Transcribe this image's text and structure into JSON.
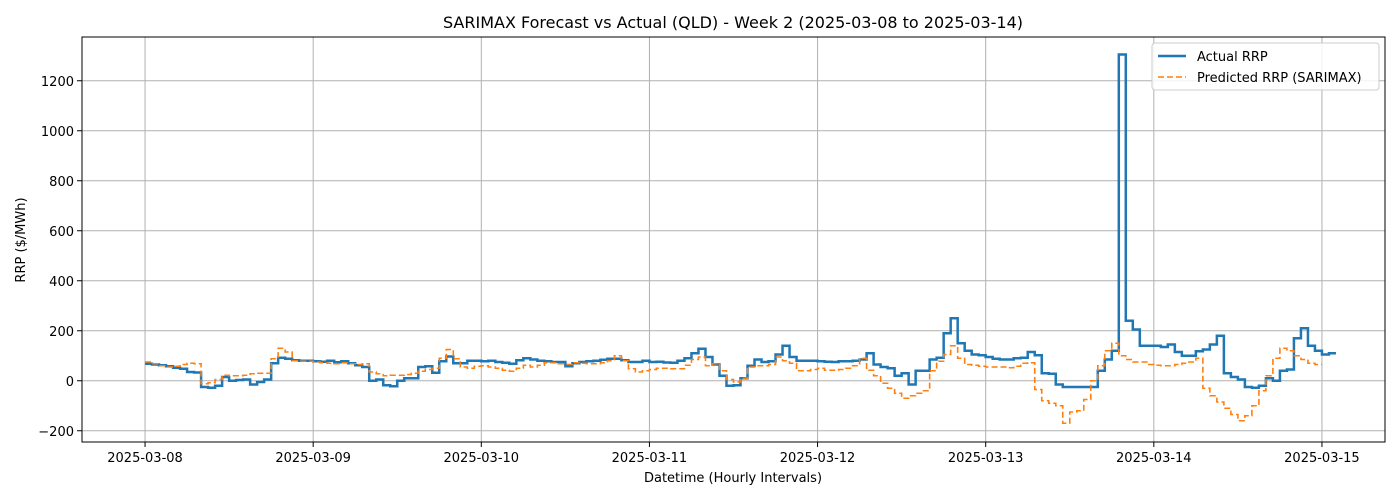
{
  "chart_data": {
    "type": "line",
    "title": "SARIMAX Forecast vs Actual (QLD) - Week 2 (2025-03-08 to 2025-03-14)",
    "xlabel": "Datetime (Hourly Intervals)",
    "ylabel": "RRP ($/MWh)",
    "x_tick_labels": [
      "2025-03-08",
      "2025-03-09",
      "2025-03-10",
      "2025-03-11",
      "2025-03-12",
      "2025-03-13",
      "2025-03-14",
      "2025-03-15"
    ],
    "y_tick_labels": [
      "−200",
      "0",
      "200",
      "400",
      "600",
      "800",
      "1000",
      "1200"
    ],
    "y_ticks": [
      -200,
      0,
      200,
      400,
      600,
      800,
      1000,
      1200
    ],
    "xlim": [
      "2025-03-07 15:00",
      "2025-03-15 09:00"
    ],
    "ylim": [
      -245,
      1375
    ],
    "grid": true,
    "legend_position": "top-right",
    "step_style": "steps-post",
    "series": [
      {
        "name": "Actual RRP",
        "color": "#1f77b4",
        "line_style": "solid",
        "start": "2025-03-08 00:00",
        "interval": "hourly",
        "values": [
          68,
          65,
          62,
          58,
          52,
          48,
          35,
          33,
          -25,
          -28,
          -20,
          15,
          0,
          3,
          5,
          -15,
          -5,
          5,
          70,
          92,
          88,
          82,
          80,
          80,
          78,
          76,
          80,
          74,
          78,
          70,
          62,
          55,
          0,
          5,
          -18,
          -22,
          0,
          10,
          10,
          55,
          58,
          32,
          78,
          97,
          70,
          70,
          80,
          80,
          78,
          80,
          75,
          72,
          68,
          82,
          90,
          85,
          80,
          78,
          75,
          75,
          58,
          70,
          75,
          78,
          80,
          84,
          88,
          88,
          82,
          75,
          75,
          80,
          75,
          76,
          73,
          72,
          80,
          90,
          110,
          128,
          95,
          65,
          20,
          -20,
          -18,
          10,
          60,
          85,
          75,
          78,
          105,
          140,
          95,
          80,
          80,
          80,
          78,
          76,
          75,
          78,
          78,
          80,
          85,
          110,
          65,
          55,
          50,
          20,
          30,
          -15,
          40,
          40,
          85,
          92,
          190,
          250,
          150,
          120,
          105,
          102,
          95,
          88,
          85,
          85,
          90,
          92,
          115,
          102,
          30,
          28,
          -15,
          -25,
          -25,
          -25,
          -25,
          -25,
          40,
          85,
          120,
          1305,
          240,
          205,
          140,
          140,
          140,
          135,
          145,
          115,
          100,
          100,
          118,
          125,
          145,
          180,
          30,
          15,
          5,
          -25,
          -28,
          -20,
          10,
          0,
          40,
          45,
          170,
          210,
          140,
          120,
          105,
          110
        ]
      },
      {
        "name": "Predicted RRP (SARIMAX)",
        "color": "#ff7f0e",
        "line_style": "dashed",
        "start": "2025-03-08 00:00",
        "interval": "hourly",
        "values": [
          75,
          68,
          60,
          55,
          58,
          65,
          70,
          68,
          -12,
          -8,
          5,
          22,
          20,
          20,
          22,
          28,
          30,
          30,
          88,
          130,
          115,
          80,
          78,
          78,
          75,
          72,
          70,
          68,
          72,
          68,
          65,
          68,
          35,
          28,
          20,
          22,
          22,
          25,
          30,
          38,
          45,
          50,
          90,
          125,
          88,
          55,
          50,
          58,
          60,
          55,
          50,
          42,
          38,
          50,
          62,
          55,
          62,
          72,
          72,
          68,
          65,
          72,
          70,
          68,
          68,
          72,
          80,
          100,
          80,
          48,
          35,
          40,
          45,
          50,
          50,
          48,
          48,
          62,
          85,
          95,
          60,
          68,
          40,
          5,
          -5,
          10,
          55,
          60,
          60,
          65,
          95,
          80,
          70,
          40,
          40,
          45,
          50,
          42,
          42,
          45,
          50,
          60,
          90,
          42,
          20,
          -10,
          -30,
          -50,
          -70,
          -60,
          -50,
          -40,
          40,
          78,
          105,
          140,
          90,
          65,
          62,
          58,
          55,
          55,
          55,
          52,
          58,
          70,
          72,
          -35,
          -80,
          -90,
          -100,
          -170,
          -125,
          -120,
          -75,
          0,
          60,
          120,
          150,
          100,
          85,
          75,
          75,
          65,
          62,
          60,
          60,
          65,
          70,
          75,
          90,
          -30,
          -60,
          -85,
          -110,
          -135,
          -160,
          -140,
          -100,
          -40,
          20,
          90,
          130,
          120,
          100,
          85,
          70,
          65
        ]
      }
    ]
  }
}
